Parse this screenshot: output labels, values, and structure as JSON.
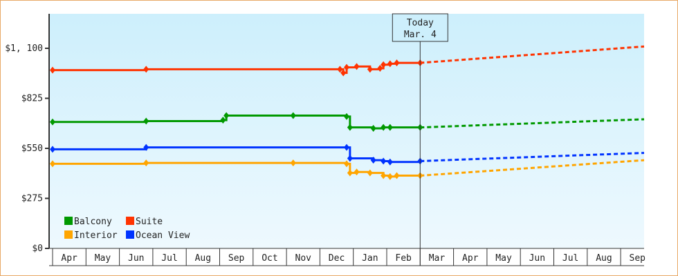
{
  "chart_data": {
    "type": "line",
    "title": "",
    "xlabel": "",
    "ylabel": "",
    "ylim": [
      0,
      1100
    ],
    "y_ticks": [
      "$0",
      "$275",
      "$550",
      "$825",
      "$1, 100"
    ],
    "x_tick_labels": [
      "Apr",
      "May",
      "Jun",
      "Jul",
      "Aug",
      "Sep",
      "Oct",
      "Nov",
      "Dec",
      "Jan",
      "Feb",
      "Mar",
      "Apr",
      "May",
      "Jun",
      "Jul",
      "Aug",
      "Sep"
    ],
    "today_marker": {
      "line1": "Today",
      "line2": "Mar. 4"
    },
    "legend": [
      {
        "name": "Balcony",
        "color": "#009900"
      },
      {
        "name": "Suite",
        "color": "#ff3300"
      },
      {
        "name": "Interior",
        "color": "#ffa500"
      },
      {
        "name": "Ocean View",
        "color": "#0033ff"
      }
    ],
    "series": [
      {
        "name": "Suite",
        "color": "#ff3300",
        "historical": [
          [
            0,
            980
          ],
          [
            2.8,
            985
          ],
          [
            8.6,
            985
          ],
          [
            8.7,
            965
          ],
          [
            8.8,
            995
          ],
          [
            9.1,
            1000
          ],
          [
            9.5,
            985
          ],
          [
            9.8,
            990
          ],
          [
            9.9,
            1010
          ],
          [
            10.1,
            1015
          ],
          [
            10.3,
            1020
          ],
          [
            11.0,
            1020
          ]
        ],
        "forecast": [
          [
            11.0,
            1020
          ],
          [
            17.8,
            1110
          ]
        ]
      },
      {
        "name": "Balcony",
        "color": "#009900",
        "historical": [
          [
            0,
            695
          ],
          [
            2.8,
            700
          ],
          [
            5.1,
            705
          ],
          [
            5.2,
            730
          ],
          [
            7.2,
            730
          ],
          [
            8.8,
            725
          ],
          [
            8.9,
            665
          ],
          [
            9.6,
            660
          ],
          [
            9.9,
            665
          ],
          [
            10.1,
            665
          ],
          [
            11.0,
            665
          ]
        ],
        "forecast": [
          [
            11.0,
            665
          ],
          [
            17.8,
            710
          ]
        ]
      },
      {
        "name": "Ocean View",
        "color": "#0033ff",
        "historical": [
          [
            0,
            545
          ],
          [
            2.8,
            555
          ],
          [
            8.8,
            555
          ],
          [
            8.9,
            495
          ],
          [
            9.6,
            485
          ],
          [
            9.9,
            480
          ],
          [
            10.1,
            475
          ],
          [
            11.0,
            480
          ]
        ],
        "forecast": [
          [
            11.0,
            480
          ],
          [
            17.8,
            525
          ]
        ]
      },
      {
        "name": "Interior",
        "color": "#ffa500",
        "historical": [
          [
            0,
            465
          ],
          [
            2.8,
            470
          ],
          [
            7.2,
            470
          ],
          [
            8.8,
            465
          ],
          [
            8.9,
            415
          ],
          [
            9.1,
            420
          ],
          [
            9.5,
            415
          ],
          [
            9.9,
            400
          ],
          [
            10.1,
            395
          ],
          [
            10.3,
            400
          ],
          [
            11.0,
            400
          ]
        ],
        "forecast": [
          [
            11.0,
            400
          ],
          [
            17.8,
            485
          ]
        ]
      }
    ],
    "grid": false,
    "legend_position": "lower-left"
  }
}
